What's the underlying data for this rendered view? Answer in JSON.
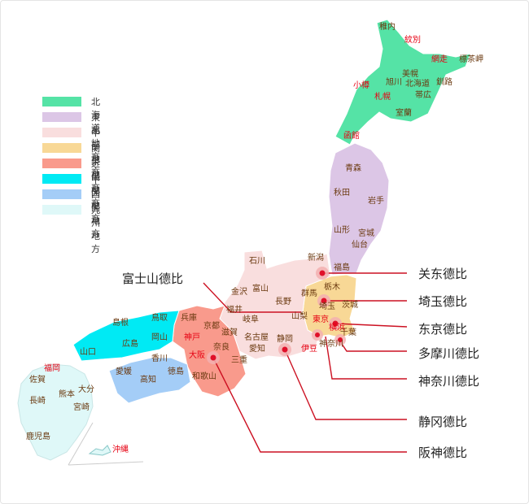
{
  "legend": [
    {
      "label": "北海道",
      "color": "#55e3a6"
    },
    {
      "label": "東北地方",
      "color": "#dcc6e6"
    },
    {
      "label": "中部地方",
      "color": "#f9dede"
    },
    {
      "label": "関東地方",
      "color": "#f8d896"
    },
    {
      "label": "近畿地方",
      "color": "#f99a8c"
    },
    {
      "label": "中国地方",
      "color": "#00eaf4"
    },
    {
      "label": "四国地方",
      "color": "#a4cdf7"
    },
    {
      "label": "九州地方",
      "color": "#dff8f8"
    }
  ],
  "callouts": {
    "fuji": "富士山德比",
    "kanto": "关东德比",
    "saitama": "埼玉德比",
    "tokyo": "东京德比",
    "tama": "多摩川德比",
    "kanagawa": "神奈川德比",
    "shizuoka": "静冈德比",
    "hanshin": "阪神德比"
  },
  "places": {
    "wakkanai": "稚内",
    "mombetsu": "紋別",
    "abashiri": "網走",
    "shibetsu": "標茶岬",
    "bihoro": "美幌",
    "asahikawa": "旭川",
    "hokkaido": "北海道",
    "kushiro": "釧路",
    "otaru": "小樽",
    "sapporo": "札幌",
    "obihiro": "帯広",
    "muroran": "室蘭",
    "hakodate": "函館",
    "aomori": "青森",
    "akita": "秋田",
    "iwate": "岩手",
    "yamagata": "山形",
    "miyagi": "宮城",
    "sendai": "仙台",
    "niigata": "新潟",
    "fukushima": "福島",
    "ishikawa": "石川",
    "tochigi": "栃木",
    "gunma": "群馬",
    "ibaraki": "茨城",
    "saitama": "埼玉",
    "kanazawa": "金沢",
    "toyama": "富山",
    "nagano": "長野",
    "fukui": "福井",
    "gifu": "岐阜",
    "tokyo": "東京",
    "chiba": "千葉",
    "yamanashi": "山梨",
    "tottori": "鳥取",
    "shimane": "島根",
    "hyogo": "兵庫",
    "kyoto": "京都",
    "shiga": "滋賀",
    "nagoya": "名古屋",
    "shizuoka": "静岡",
    "kanagawa": "神奈川",
    "izu": "伊豆",
    "yokohama": "横浜",
    "tsukuba": "筑波",
    "hiroshima": "広島",
    "okayama": "岡山",
    "yamaguchi": "山口",
    "kobe": "神戸",
    "osaka": "大阪",
    "nara": "奈良",
    "wakayama": "和歌山",
    "aichi": "愛知",
    "mie": "三重",
    "kagawa": "香川",
    "ehime": "愛媛",
    "kochi": "高知",
    "tokushima": "徳島",
    "fukuoka": "福岡",
    "saga": "佐賀",
    "nagasaki": "長崎",
    "kumamoto": "熊本",
    "oita": "大分",
    "miyazaki": "宮崎",
    "kagoshima": "鹿児島",
    "okinawa": "沖縄"
  }
}
